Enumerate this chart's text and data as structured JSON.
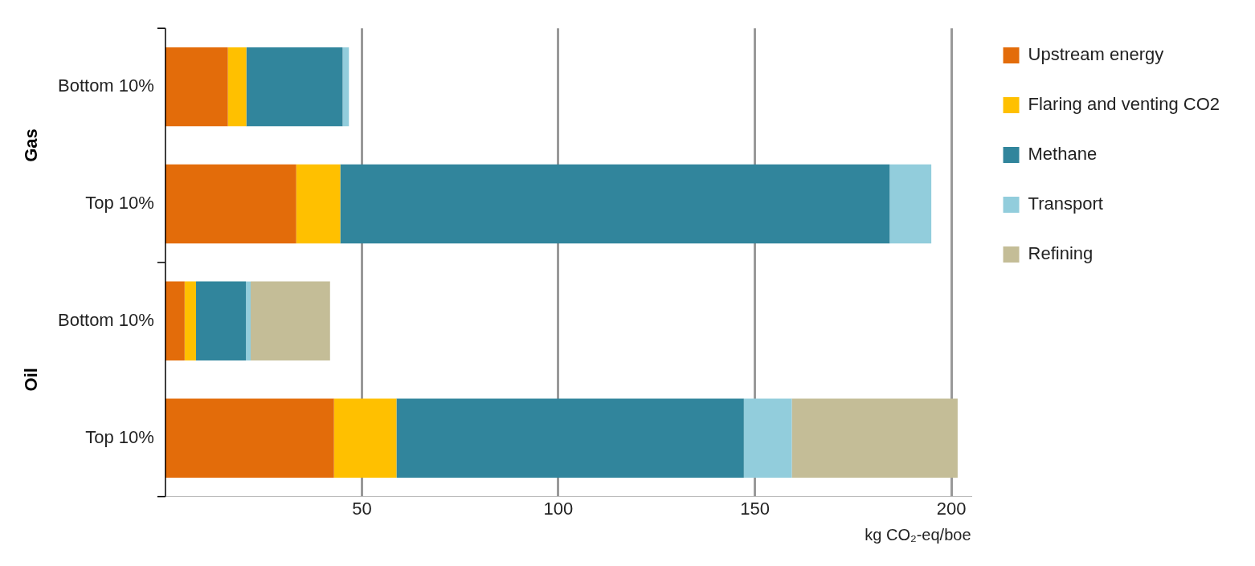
{
  "chart_data": {
    "type": "bar",
    "orientation": "horizontal",
    "stacked": true,
    "categories": [
      "Bottom 10%",
      "Top 10%",
      "Bottom 10%",
      "Top 10%"
    ],
    "series": [
      {
        "name": "Upstream energy",
        "color": "#e36c0a",
        "values": [
          15.9,
          33.3,
          4.9,
          42.9
        ]
      },
      {
        "name": "Flaring and venting CO2",
        "color": "#ffc000",
        "values": [
          4.7,
          11.2,
          2.9,
          15.9
        ]
      },
      {
        "name": "Methane",
        "color": "#31859c",
        "values": [
          24.5,
          139.8,
          12.7,
          88.4
        ]
      },
      {
        "name": "Transport",
        "color": "#92cddc",
        "values": [
          1.6,
          10.6,
          1.2,
          12.2
        ]
      },
      {
        "name": "Refining",
        "color": "#c4bd97",
        "values": [
          null,
          null,
          20.2,
          42.2
        ]
      }
    ],
    "xlim": [
      0,
      205
    ],
    "xticks": [
      50,
      100,
      150,
      200
    ],
    "xlabel": "kg CO₂-eq/boe",
    "grid": "x",
    "legend": "right",
    "annotations": [
      "Gas",
      "Oil"
    ]
  }
}
